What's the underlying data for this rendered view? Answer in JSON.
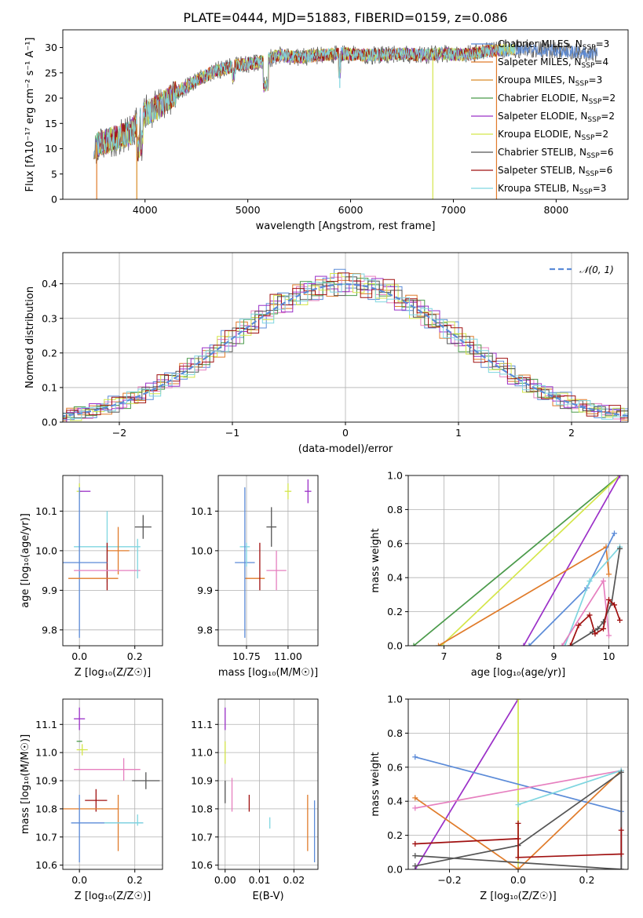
{
  "figure_title": "PLATE=0444, MJD=51883, FIBERID=0159, z=0.086",
  "colors": {
    "Chabrier MILES": "#5b8bd8",
    "Salpeter MILES": "#e07b2a",
    "Kroupa MILES": "#d98b26",
    "Chabrier ELODIE": "#4a9a4a",
    "Salpeter ELODIE": "#9b30c8",
    "Kroupa ELODIE": "#d4e64a",
    "Chabrier STELIB": "#555555",
    "Salpeter STELIB": "#a01010",
    "Kroupa STELIB": "#7fd6e0",
    "pink": "#e67fbf",
    "gaussian": "#5b8bd8"
  },
  "chart_data": [
    {
      "id": "spectrum",
      "type": "line",
      "title": "PLATE=0444, MJD=51883, FIBERID=0159, z=0.086",
      "xlabel": "wavelength [Angstrom, rest frame]",
      "ylabel": "Flux [fλ10⁻¹⁷ erg cm⁻² s⁻¹ A⁻¹]",
      "xlim": [
        3200,
        8700
      ],
      "ylim": [
        0,
        33.5
      ],
      "xticks": [
        4000,
        5000,
        6000,
        7000,
        8000
      ],
      "yticks": [
        0,
        5,
        10,
        15,
        20,
        25,
        30
      ],
      "grid": false,
      "legend_position": "upper-right",
      "continuum_x": [
        3500,
        3700,
        3850,
        4000,
        4150,
        4300,
        4500,
        4700,
        4900,
        5100,
        5300,
        5500,
        5700,
        5900,
        6100,
        6300,
        6500,
        6700,
        6900,
        7100,
        7300,
        7500,
        7700,
        7900,
        8100,
        8300
      ],
      "continuum_y": [
        10.5,
        12,
        13,
        17,
        18.5,
        21,
        23.5,
        25.5,
        26.5,
        27,
        28.5,
        28,
        28.5,
        28.8,
        28.5,
        28.5,
        28.8,
        28.5,
        28.8,
        28.5,
        29.2,
        29.5,
        29.8,
        29.5,
        29.2,
        28.8
      ],
      "series": [
        {
          "name": "Chabrier MILES, N_SSP=3",
          "label": "Chabrier MILES, N",
          "sub": "SSP",
          "suffix": "=3"
        },
        {
          "name": "Salpeter MILES, N_SSP=4",
          "label": "Salpeter MILES, N",
          "sub": "SSP",
          "suffix": "=4"
        },
        {
          "name": "Kroupa MILES, N_SSP=3",
          "label": "Kroupa MILES, N",
          "sub": "SSP",
          "suffix": "=3"
        },
        {
          "name": "Chabrier ELODIE, N_SSP=2",
          "label": "Chabrier ELODIE, N",
          "sub": "SSP",
          "suffix": "=2"
        },
        {
          "name": "Salpeter ELODIE, N_SSP=2",
          "label": "Salpeter ELODIE, N",
          "sub": "SSP",
          "suffix": "=2"
        },
        {
          "name": "Kroupa ELODIE, N_SSP=2",
          "label": "Kroupa ELODIE, N",
          "sub": "SSP",
          "suffix": "=2"
        },
        {
          "name": "Chabrier STELIB, N_SSP=6",
          "label": "Chabrier STELIB, N",
          "sub": "SSP",
          "suffix": "=6"
        },
        {
          "name": "Salpeter STELIB, N_SSP=6",
          "label": "Salpeter STELIB, N",
          "sub": "SSP",
          "suffix": "=6"
        },
        {
          "name": "Kroupa STELIB, N_SSP=3",
          "label": "Kroupa STELIB, N",
          "sub": "SSP",
          "suffix": "=3"
        }
      ],
      "spikes": [
        {
          "x": 3530,
          "y": 0,
          "series": 1
        },
        {
          "x": 3920,
          "y": 0,
          "series": 2
        },
        {
          "x": 5895,
          "y": 22,
          "series": 8
        },
        {
          "x": 6800,
          "y": 0,
          "series": 5
        },
        {
          "x": 7420,
          "y": 0,
          "series": 1
        }
      ]
    },
    {
      "id": "residuals",
      "type": "histogram",
      "xlabel": "(data-model)/error",
      "ylabel": "Normed distribution",
      "xlim": [
        -2.5,
        2.5
      ],
      "ylim": [
        0,
        0.49
      ],
      "xticks": [
        -2,
        -1,
        0,
        1,
        2
      ],
      "xticklabels": [
        "−2",
        "−1",
        "0",
        "1",
        "2"
      ],
      "yticks": [
        0.0,
        0.1,
        0.2,
        0.3,
        0.4
      ],
      "yticklabels": [
        "0.0",
        "0.1",
        "0.2",
        "0.3",
        "0.4"
      ],
      "grid": true,
      "bin_width": 0.1,
      "gaussian": {
        "label": "𝒩(0, 1)",
        "mu": 0,
        "sigma": 1
      },
      "legend_position": "upper-right",
      "bin_offsets": [
        [
          0.03,
          -0.02,
          0.01,
          -0.03,
          0.02,
          0.04,
          -0.01,
          0.0,
          -0.03,
          0.02
        ],
        [
          -0.02,
          0.03,
          -0.01,
          0.02,
          -0.03,
          0.01,
          0.03,
          -0.02,
          0.0,
          0.01
        ],
        [
          0.01,
          0.02,
          -0.03,
          0.0,
          0.02,
          -0.02,
          0.01,
          0.03,
          -0.01,
          -0.02
        ],
        [
          0.02,
          -0.01,
          0.03,
          -0.02,
          0.01,
          0.0,
          -0.03,
          0.02,
          0.01,
          -0.01
        ],
        [
          -0.03,
          0.01,
          0.02,
          0.03,
          -0.01,
          -0.02,
          0.0,
          -0.01,
          0.03,
          0.02
        ],
        [
          0.0,
          -0.03,
          0.01,
          -0.01,
          0.03,
          0.02,
          -0.02,
          0.01,
          -0.02,
          0.03
        ],
        [
          0.02,
          0.01,
          -0.02,
          0.01,
          0.0,
          -0.03,
          0.02,
          -0.01,
          0.02,
          0.0
        ],
        [
          -0.01,
          0.02,
          0.0,
          -0.02,
          0.01,
          0.03,
          0.01,
          -0.03,
          0.0,
          0.04
        ],
        [
          0.01,
          -0.02,
          0.02,
          0.01,
          -0.02,
          0.0,
          0.03,
          0.02,
          -0.03,
          -0.01
        ]
      ]
    },
    {
      "id": "age_vs_Z",
      "type": "errorbar",
      "xlabel": "Z [log₁₀(Z/Z☉)]",
      "ylabel": "age  [log₁₀(age/yr)]",
      "xlim": [
        -0.06,
        0.3
      ],
      "ylim": [
        9.76,
        10.19
      ],
      "xticks": [
        0.0,
        0.2
      ],
      "xticklabels": [
        "0.0",
        "0.2"
      ],
      "yticks": [
        9.8,
        9.9,
        10.0,
        10.1
      ],
      "yticklabels": [
        "9.8",
        "9.9",
        "10.0",
        "10.1"
      ],
      "grid": true,
      "points": [
        {
          "x": 0.0,
          "xerr": 0.01,
          "y": 10.15,
          "yerr": 0.02,
          "series": 5
        },
        {
          "x": 0.02,
          "xerr": 0.02,
          "y": 10.15,
          "yerr": 0.0,
          "series": 4
        },
        {
          "x": 0.23,
          "xerr": 0.03,
          "y": 10.06,
          "yerr": 0.03,
          "series": 6
        },
        {
          "x": 0.1,
          "xerr": 0.12,
          "y": 10.01,
          "yerr": 0.09,
          "series": 8
        },
        {
          "x": 0.14,
          "xerr": 0.04,
          "y": 10.0,
          "yerr": 0.06,
          "series": 1
        },
        {
          "x": 0.1,
          "xerr": 0.0,
          "y": 9.96,
          "yerr": 0.06,
          "series": 7
        },
        {
          "x": 0.0,
          "xerr": 0.1,
          "y": 9.97,
          "yerr": 0.19,
          "series": 0
        },
        {
          "x": 0.1,
          "xerr": 0.12,
          "y": 9.95,
          "yerr": 0.0,
          "series": 9
        },
        {
          "x": 0.05,
          "xerr": 0.09,
          "y": 9.93,
          "yerr": 0.0,
          "series": 1
        },
        {
          "x": 0.21,
          "xerr": 0.0,
          "y": 9.98,
          "yerr": 0.05,
          "series": 8
        }
      ]
    },
    {
      "id": "age_vs_mass",
      "type": "errorbar",
      "xlabel": "mass [log₁₀(M/M☉)]",
      "ylabel": "",
      "xlim": [
        10.58,
        11.18
      ],
      "ylim": [
        9.76,
        10.19
      ],
      "xticks": [
        10.75,
        11.0
      ],
      "xticklabels": [
        "10.75",
        "11.00"
      ],
      "yticks": [
        9.8,
        9.9,
        10.0,
        10.1
      ],
      "yticklabels": [
        "9.8",
        "9.9",
        "10.0",
        "10.1"
      ],
      "grid": true,
      "points": [
        {
          "x": 11.0,
          "xerr": 0.02,
          "y": 10.15,
          "yerr": 0.02,
          "series": 5
        },
        {
          "x": 11.12,
          "xerr": 0.02,
          "y": 10.15,
          "yerr": 0.03,
          "series": 4
        },
        {
          "x": 10.9,
          "xerr": 0.03,
          "y": 10.06,
          "yerr": 0.05,
          "series": 6
        },
        {
          "x": 10.74,
          "xerr": 0.03,
          "y": 10.01,
          "yerr": 0.0,
          "series": 8
        },
        {
          "x": 10.8,
          "xerr": 0.06,
          "y": 9.93,
          "yerr": 0.0,
          "series": 1
        },
        {
          "x": 10.83,
          "xerr": 0.0,
          "y": 9.96,
          "yerr": 0.06,
          "series": 7
        },
        {
          "x": 10.74,
          "xerr": 0.06,
          "y": 9.97,
          "yerr": 0.19,
          "series": 0
        },
        {
          "x": 10.93,
          "xerr": 0.06,
          "y": 9.95,
          "yerr": 0.05,
          "series": 9
        },
        {
          "x": 10.75,
          "xerr": 0.0,
          "y": 9.99,
          "yerr": 0.03,
          "series": 8
        }
      ]
    },
    {
      "id": "massweight_vs_age",
      "type": "line",
      "xlabel": "age  [log₁₀(age/yr)]",
      "ylabel": "mass weight",
      "xlim": [
        6.35,
        10.35
      ],
      "ylim": [
        0,
        1
      ],
      "xticks": [
        7,
        8,
        9,
        10
      ],
      "xticklabels": [
        "7",
        "8",
        "9",
        "10"
      ],
      "yticks": [
        0.0,
        0.2,
        0.4,
        0.6,
        0.8,
        1.0
      ],
      "yticklabels": [
        "0.0",
        "0.2",
        "0.4",
        "0.6",
        "0.8",
        "1.0"
      ],
      "grid": true,
      "series": [
        {
          "series": 3,
          "x": [
            6.45,
            10.2
          ],
          "y": [
            0.0,
            1.0
          ]
        },
        {
          "series": 5,
          "x": [
            6.95,
            10.2
          ],
          "y": [
            0.0,
            1.0
          ]
        },
        {
          "series": 4,
          "x": [
            8.45,
            10.2
          ],
          "y": [
            0.0,
            1.0
          ]
        },
        {
          "series": 1,
          "x": [
            6.9,
            9.95,
            10.0
          ],
          "y": [
            0.0,
            0.58,
            0.42
          ]
        },
        {
          "series": 0,
          "x": [
            8.55,
            9.6,
            10.1
          ],
          "y": [
            0.0,
            0.34,
            0.66
          ]
        },
        {
          "series": 8,
          "x": [
            9.2,
            9.65,
            10.2
          ],
          "y": [
            0.0,
            0.38,
            0.58
          ]
        },
        {
          "series": 9,
          "x": [
            9.15,
            9.9,
            10.0
          ],
          "y": [
            0.0,
            0.38,
            0.06
          ]
        },
        {
          "series": 6,
          "x": [
            9.3,
            9.7,
            9.8,
            9.9,
            10.05,
            10.2
          ],
          "y": [
            0.0,
            0.08,
            0.1,
            0.14,
            0.25,
            0.57
          ]
        },
        {
          "series": 7,
          "x": [
            9.3,
            9.45,
            9.65,
            9.75,
            9.9,
            10.0,
            10.1,
            10.2
          ],
          "y": [
            0.0,
            0.12,
            0.18,
            0.07,
            0.1,
            0.27,
            0.24,
            0.15
          ]
        }
      ]
    },
    {
      "id": "mass_vs_Z",
      "type": "errorbar",
      "xlabel": "Z [log₁₀(Z/Z☉)]",
      "ylabel": "mass [log₁₀(M/M☉)]",
      "xlim": [
        -0.06,
        0.3
      ],
      "ylim": [
        10.585,
        11.19
      ],
      "xticks": [
        0.0,
        0.2
      ],
      "xticklabels": [
        "0.0",
        "0.2"
      ],
      "yticks": [
        10.6,
        10.7,
        10.8,
        10.9,
        11.0,
        11.1
      ],
      "yticklabels": [
        "10.6",
        "10.7",
        "10.8",
        "10.9",
        "11.0",
        "11.1"
      ],
      "grid": true,
      "points": [
        {
          "x": 0.0,
          "xerr": 0.02,
          "y": 11.12,
          "yerr": 0.04,
          "series": 4
        },
        {
          "x": 0.0,
          "xerr": 0.01,
          "y": 11.04,
          "yerr": 0.0,
          "series": 3
        },
        {
          "x": 0.01,
          "xerr": 0.02,
          "y": 11.01,
          "yerr": 0.02,
          "series": 5
        },
        {
          "x": 0.1,
          "xerr": 0.12,
          "y": 10.94,
          "yerr": 0.0,
          "series": 9
        },
        {
          "x": 0.16,
          "xerr": 0.0,
          "y": 10.94,
          "yerr": 0.04,
          "series": 9
        },
        {
          "x": 0.24,
          "xerr": 0.05,
          "y": 10.9,
          "yerr": 0.03,
          "series": 6
        },
        {
          "x": 0.06,
          "xerr": 0.04,
          "y": 10.83,
          "yerr": 0.04,
          "series": 7
        },
        {
          "x": 0.04,
          "xerr": 0.1,
          "y": 10.8,
          "yerr": 0.0,
          "series": 1
        },
        {
          "x": 0.14,
          "xerr": 0.0,
          "y": 10.75,
          "yerr": 0.1,
          "series": 1
        },
        {
          "x": 0.0,
          "xerr": 0.0,
          "y": 10.73,
          "yerr": 0.12,
          "series": 0
        },
        {
          "x": 0.1,
          "xerr": 0.13,
          "y": 10.75,
          "yerr": 0.0,
          "series": 0
        },
        {
          "x": 0.16,
          "xerr": 0.07,
          "y": 10.75,
          "yerr": 0.0,
          "series": 8
        },
        {
          "x": 0.21,
          "xerr": 0.0,
          "y": 10.76,
          "yerr": 0.02,
          "series": 8
        }
      ]
    },
    {
      "id": "mass_vs_ebv",
      "type": "errorbar",
      "xlabel": "E(B-V)",
      "ylabel": "",
      "xlim": [
        -0.002,
        0.027
      ],
      "ylim": [
        10.585,
        11.19
      ],
      "xticks": [
        0.0,
        0.01,
        0.02
      ],
      "xticklabels": [
        "0.00",
        "0.01",
        "0.02"
      ],
      "yticks": [
        10.6,
        10.7,
        10.8,
        10.9,
        11.0,
        11.1
      ],
      "yticklabels": [
        "10.6",
        "10.7",
        "10.8",
        "10.9",
        "11.0",
        "11.1"
      ],
      "grid": true,
      "points": [
        {
          "x": 0.0,
          "xerr": 0.0,
          "y": 11.12,
          "yerr": 0.04,
          "series": 4
        },
        {
          "x": 0.0,
          "xerr": 0.0,
          "y": 11.0,
          "yerr": 0.04,
          "series": 5
        },
        {
          "x": 0.0,
          "xerr": 0.0,
          "y": 10.86,
          "yerr": 0.04,
          "series": 6
        },
        {
          "x": 0.002,
          "xerr": 0.0,
          "y": 10.85,
          "yerr": 0.06,
          "series": 9
        },
        {
          "x": 0.007,
          "xerr": 0.0,
          "y": 10.82,
          "yerr": 0.03,
          "series": 7
        },
        {
          "x": 0.013,
          "xerr": 0.0,
          "y": 10.75,
          "yerr": 0.02,
          "series": 8
        },
        {
          "x": 0.024,
          "xerr": 0.0,
          "y": 10.75,
          "yerr": 0.1,
          "series": 1
        },
        {
          "x": 0.026,
          "xerr": 0.0,
          "y": 10.72,
          "yerr": 0.11,
          "series": 0
        }
      ]
    },
    {
      "id": "massweight_vs_Z",
      "type": "line",
      "xlabel": "Z [log₁₀(Z/Z☉)]",
      "ylabel": "mass weight",
      "xlim": [
        -0.32,
        0.32
      ],
      "ylim": [
        0,
        1
      ],
      "xticks": [
        -0.2,
        0.0,
        0.2
      ],
      "xticklabels": [
        "−0.2",
        "0.0",
        "0.2"
      ],
      "yticks": [
        0.0,
        0.2,
        0.4,
        0.6,
        0.8,
        1.0
      ],
      "yticklabels": [
        "0.0",
        "0.2",
        "0.4",
        "0.6",
        "0.8",
        "1.0"
      ],
      "grid": true,
      "series": [
        {
          "series": 4,
          "x": [
            -0.3,
            0.0
          ],
          "y": [
            0.0,
            1.0
          ]
        },
        {
          "series": 5,
          "x": [
            0.0,
            0.0
          ],
          "y": [
            0.0,
            1.0
          ]
        },
        {
          "series": 0,
          "x": [
            -0.3,
            0.3,
            0.3
          ],
          "y": [
            0.66,
            0.34,
            0.0
          ]
        },
        {
          "series": 1,
          "x": [
            -0.3,
            0.0,
            0.3,
            0.3
          ],
          "y": [
            0.42,
            0.0,
            0.58,
            0.0
          ]
        },
        {
          "series": 9,
          "x": [
            -0.3,
            0.3,
            0.3
          ],
          "y": [
            0.36,
            0.58,
            0.0
          ]
        },
        {
          "series": 8,
          "x": [
            0.0,
            0.3,
            0.3
          ],
          "y": [
            0.38,
            0.58,
            0.0
          ]
        },
        {
          "series": 6,
          "x": [
            -0.3,
            0.0,
            0.3,
            0.3,
            -0.3
          ],
          "y": [
            0.02,
            0.14,
            0.57,
            0.0,
            0.08
          ]
        },
        {
          "series": 7,
          "x": [
            -0.3,
            0.0,
            0.0,
            0.0,
            0.3,
            0.3
          ],
          "y": [
            0.15,
            0.18,
            0.27,
            0.07,
            0.09,
            0.23
          ]
        }
      ]
    }
  ]
}
